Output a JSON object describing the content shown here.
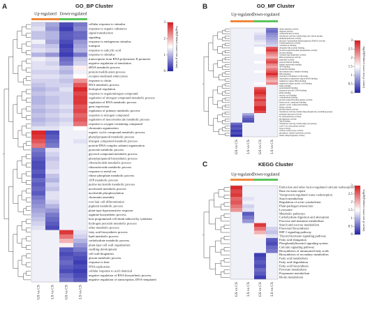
{
  "chart_data": [
    {
      "type": "heatmap",
      "panel": "A",
      "title": "GO_BP Cluster",
      "groups": [
        {
          "name": "Up-regulated",
          "color": "#f0883a"
        },
        {
          "name": "Down-regulated",
          "color": "#5dc45d"
        }
      ],
      "columns": [
        "GS vs CS",
        "LS vs CS",
        "GS vs CS",
        "LS vs CS"
      ],
      "colorbar_label": "-log10(Fisher's exact test p value)",
      "clim": [
        0,
        3
      ],
      "cticks": [
        0,
        1,
        2,
        3
      ],
      "rows": [
        "cellular response to stimulus",
        "response to organic substance",
        "signal transduction",
        "signaling",
        "response to endogenous stimulus",
        "transport",
        "response to salicylic acid",
        "response to stimulus",
        "transcription from RNA polymerase II promoter",
        "negative regulation of translation",
        "tRNA metabolic process",
        "protein modification process",
        "receptor-mediated endocytosis",
        "response to chitin",
        "RNA metabolic process",
        "biological regulation",
        "response to organonitrogen compound",
        "regulation of nitrogen compound metabolic process",
        "regulation of RNA metabolic process",
        "gene expression",
        "regulation of primary metabolic process",
        "response to nitrogen compound",
        "regulation of macromolecule metabolic process",
        "response to oxygen-containing compound",
        "chromatin organization",
        "organic cyclic compound metabolic process",
        "phenylpropanoid metabolic process",
        "nitrogen compound metabolic process",
        "protein-DNA complex subunit organization",
        "pyruvate metabolic process",
        "glycerol compound metabolic process",
        "phenylpropanoid biosynthetic process",
        "ribonucleotide metabolic process",
        "ribonucleoside metabolic process",
        "response to metal ion",
        "ribose phosphate metabolic process",
        "ATP metabolic process",
        "purine nucleotide metabolic process",
        "nucleoside metabolic process",
        "nucleotide phosphorylation",
        "chromatin assembly",
        "root hair cell differentiation",
        "pigment metabolic process",
        "plant-type hypersensitive response",
        "arginine biosynthetic process",
        "host programmed cell death induced by symbiont",
        "hydrogen peroxide metabolic process",
        "other metabolic process",
        "fatty acid biosynthetic process",
        "lipid metabolic process",
        "carbohydrate metabolic process",
        "plant-type cell wall organization",
        "seedling development",
        "cell wall biogenesis",
        "glucan metabolic process",
        "response to heat",
        "DNA replication",
        "cellular response to acid chemical",
        "negative regulation of RNA biosynthetic process",
        "negative regulation of transcription, DNA-templated"
      ],
      "values": [
        [
          1.2,
          0.9,
          0.3,
          0.6
        ],
        [
          1.3,
          0.8,
          0.2,
          0.7
        ],
        [
          1.1,
          1.0,
          0.4,
          0.5
        ],
        [
          1.1,
          1.0,
          0.4,
          0.5
        ],
        [
          1.4,
          0.9,
          0.3,
          0.8
        ],
        [
          1.2,
          1.1,
          0.2,
          0.9
        ],
        [
          1.3,
          1.2,
          0.3,
          1.0
        ],
        [
          1.0,
          0.8,
          0.2,
          0.6
        ],
        [
          1.4,
          1.3,
          0.5,
          1.1
        ],
        [
          1.3,
          1.2,
          0.6,
          1.2
        ],
        [
          1.3,
          1.3,
          1.1,
          1.6
        ],
        [
          1.2,
          1.2,
          1.0,
          1.4
        ],
        [
          1.3,
          1.3,
          1.2,
          1.5
        ],
        [
          1.2,
          1.2,
          1.1,
          2.2
        ],
        [
          1.1,
          1.2,
          1.2,
          2.6
        ],
        [
          1.0,
          1.1,
          1.3,
          2.9
        ],
        [
          1.1,
          1.2,
          1.2,
          2.7
        ],
        [
          1.0,
          1.1,
          1.2,
          2.8
        ],
        [
          1.0,
          1.1,
          1.2,
          2.8
        ],
        [
          1.1,
          1.2,
          1.3,
          2.6
        ],
        [
          1.0,
          1.1,
          1.2,
          2.7
        ],
        [
          1.1,
          1.2,
          1.3,
          2.5
        ],
        [
          1.0,
          1.1,
          1.2,
          2.6
        ],
        [
          1.1,
          1.2,
          1.3,
          2.4
        ],
        [
          1.3,
          1.3,
          1.4,
          1.5
        ],
        [
          2.9,
          0.3,
          1.4,
          1.4
        ],
        [
          2.8,
          0.4,
          1.4,
          1.4
        ],
        [
          2.6,
          0.5,
          1.4,
          1.3
        ],
        [
          2.4,
          0.6,
          1.4,
          1.4
        ],
        [
          0.6,
          1.3,
          1.4,
          1.4
        ],
        [
          0.5,
          1.2,
          1.4,
          1.4
        ],
        [
          0.4,
          1.1,
          1.4,
          1.4
        ],
        [
          0.3,
          1.2,
          1.4,
          1.4
        ],
        [
          0.3,
          1.2,
          1.4,
          1.4
        ],
        [
          0.4,
          1.3,
          1.4,
          1.4
        ],
        [
          0.3,
          1.1,
          1.4,
          1.4
        ],
        [
          0.5,
          1.0,
          1.4,
          1.4
        ],
        [
          0.4,
          1.2,
          1.4,
          1.4
        ],
        [
          0.5,
          1.1,
          1.4,
          1.4
        ],
        [
          0.4,
          1.3,
          1.4,
          1.4
        ],
        [
          0.6,
          1.3,
          1.4,
          1.4
        ],
        [
          0.7,
          1.2,
          1.4,
          1.4
        ],
        [
          0.8,
          1.0,
          1.4,
          1.4
        ],
        [
          0.9,
          0.8,
          1.4,
          1.4
        ],
        [
          1.0,
          0.6,
          1.4,
          1.4
        ],
        [
          1.1,
          0.5,
          1.4,
          1.4
        ],
        [
          1.2,
          0.4,
          1.4,
          1.4
        ],
        [
          1.3,
          0.3,
          1.4,
          1.4
        ],
        [
          1.4,
          1.4,
          2.8,
          1.3
        ],
        [
          1.4,
          1.4,
          2.4,
          1.2
        ],
        [
          1.4,
          1.4,
          2.0,
          1.0
        ],
        [
          1.4,
          1.4,
          1.6,
          0.8
        ],
        [
          1.4,
          1.4,
          0.4,
          0.6
        ],
        [
          1.4,
          1.4,
          0.3,
          0.4
        ],
        [
          1.4,
          1.4,
          0.4,
          0.3
        ],
        [
          1.4,
          1.4,
          0.5,
          0.2
        ],
        [
          1.4,
          1.4,
          0.4,
          0.3
        ],
        [
          1.4,
          1.4,
          0.3,
          0.2
        ],
        [
          1.4,
          1.4,
          0.5,
          0.3
        ],
        [
          1.4,
          1.4,
          0.6,
          0.4
        ]
      ]
    },
    {
      "type": "heatmap",
      "panel": "B",
      "title": "GO_MF Cluster",
      "groups": [
        {
          "name": "Up-regulated",
          "color": "#f0883a"
        },
        {
          "name": "Down-regulated",
          "color": "#5dc45d"
        }
      ],
      "columns": [
        "GS vs CS",
        "LS vs CS",
        "GS vs CS",
        "LS vs CS"
      ],
      "colorbar_label": "-log10(Fisher's exact test p value)",
      "clim": [
        0,
        3
      ],
      "cticks": [
        0,
        0.5,
        1,
        1.5,
        2,
        2.5,
        3
      ],
      "rows": [
        "alpha-amylase activity",
        "amylase activity",
        "oxidoreductase activity",
        "transferase activity, transferring one-carbon groups",
        "methyltransferase activity",
        "glycerol-3-phosphate dehydrogenase (NAD+) activity",
        "acetyltransferase activity",
        "calcium ion binding",
        "ubiquitin-like protein binding",
        "protein serine/threonine phosphatase activity",
        "protein binding",
        "cysteine-type peptidase activity",
        "RNA polymerase activity",
        "peptidase activity",
        "polysaccharide binding",
        "adenyl nucleotide binding",
        "ATP binding",
        "chromatin binding",
        "macromolecular complex binding",
        "RNA binding",
        "structural constituent of ribosome",
        "transcription regulatory region DNA binding",
        "regulatory region DNA binding",
        "regulatory region nucleic acid binding",
        "heme binding",
        "polyubiquitin binding",
        "sequence-specific DNA binding",
        "DNA binding",
        "nucleic acid binding",
        "carbohydrate binding",
        "protein serine/threonine kinase activity",
        "heterocyclic compound binding",
        "organic cyclic compound binding",
        "kinase activity",
        "protein kinase activity",
        "transferase activity, transferring phosphorus-containing groups",
        "polygalacturonase activity",
        "N-acyltransferase activity",
        "phosphatase activity",
        "lipid binding",
        "transferase activity, transferring acyl groups",
        "acyl-CoA carboxylase activity",
        "lyase activity",
        "carbon-carbon lyase activity",
        "phosphoric diester hydrolase activity",
        "amino dehydrogenase activity"
      ],
      "values": [
        [
          1.4,
          1.4,
          1.4,
          0.6
        ],
        [
          1.4,
          1.4,
          1.4,
          0.5
        ],
        [
          1.4,
          1.4,
          1.3,
          0.7
        ],
        [
          1.4,
          1.4,
          1.2,
          0.8
        ],
        [
          1.4,
          1.4,
          1.2,
          0.9
        ],
        [
          1.4,
          1.4,
          1.3,
          1.0
        ],
        [
          1.4,
          1.4,
          1.4,
          1.1
        ],
        [
          1.4,
          1.4,
          1.3,
          1.2
        ],
        [
          1.4,
          1.4,
          1.5,
          2.6
        ],
        [
          1.4,
          1.4,
          1.5,
          2.8
        ],
        [
          1.4,
          1.4,
          1.5,
          2.4
        ],
        [
          1.4,
          1.4,
          1.4,
          2.2
        ],
        [
          1.4,
          1.4,
          1.4,
          2.0
        ],
        [
          1.4,
          1.4,
          1.4,
          2.5
        ],
        [
          1.4,
          1.4,
          1.5,
          2.7
        ],
        [
          1.4,
          1.4,
          1.4,
          2.3
        ],
        [
          1.4,
          1.4,
          1.4,
          2.1
        ],
        [
          1.4,
          1.4,
          1.4,
          2.4
        ],
        [
          1.4,
          1.4,
          1.5,
          2.6
        ],
        [
          1.4,
          1.4,
          1.4,
          2.9
        ],
        [
          1.4,
          1.4,
          1.4,
          2.5
        ],
        [
          1.4,
          1.4,
          1.4,
          2.2
        ],
        [
          1.4,
          1.4,
          1.4,
          2.0
        ],
        [
          1.4,
          1.4,
          1.5,
          2.3
        ],
        [
          1.4,
          1.4,
          1.4,
          1.4
        ],
        [
          1.4,
          1.4,
          2.6,
          1.4
        ],
        [
          1.4,
          1.4,
          2.8,
          1.4
        ],
        [
          1.4,
          1.4,
          2.9,
          1.4
        ],
        [
          1.4,
          1.4,
          2.7,
          1.4
        ],
        [
          1.4,
          1.4,
          2.5,
          1.4
        ],
        [
          1.4,
          1.4,
          2.8,
          1.4
        ],
        [
          1.4,
          1.4,
          2.6,
          1.4
        ],
        [
          1.4,
          1.4,
          2.6,
          1.4
        ],
        [
          1.4,
          1.4,
          2.9,
          1.4
        ],
        [
          1.4,
          1.4,
          2.9,
          1.4
        ],
        [
          1.4,
          1.4,
          2.7,
          1.4
        ],
        [
          1.4,
          0.9,
          1.4,
          1.4
        ],
        [
          1.4,
          0.6,
          1.4,
          1.4
        ],
        [
          1.4,
          0.4,
          1.4,
          1.4
        ],
        [
          1.4,
          0.3,
          1.4,
          1.4
        ],
        [
          0.5,
          1.4,
          1.4,
          1.4
        ],
        [
          0.3,
          1.4,
          1.4,
          1.4
        ],
        [
          0.4,
          1.4,
          1.4,
          1.4
        ],
        [
          0.2,
          1.4,
          1.4,
          1.4
        ],
        [
          0.3,
          1.4,
          1.4,
          1.4
        ],
        [
          0.1,
          1.4,
          1.4,
          1.4
        ]
      ]
    },
    {
      "type": "heatmap",
      "panel": "C",
      "title": "KEGG Cluster",
      "groups": [
        {
          "name": "Up-regulated",
          "color": "#f0883a"
        },
        {
          "name": "Down-regulated",
          "color": "#5dc45d"
        }
      ],
      "columns": [
        "GS vs CS",
        "LS vs CS",
        "GS vs CS",
        "LS vs CS"
      ],
      "colorbar_label": "-log10(Fisher's exact test p value)",
      "clim": [
        0,
        3
      ],
      "cticks": [
        0,
        0.5,
        1,
        1.5,
        2,
        2.5,
        3
      ],
      "rows": [
        "Endocrine and other factor-regulated calcium reabsorption",
        "Base excision repair",
        "Vasopressin-regulated water reabsorption",
        "Starch metabolism",
        "Regulation of actin cytoskeleton",
        "Plant-pathogen interaction",
        "Lysosome",
        "Metabolic pathways",
        "Carbohydrate digestion and absorption",
        "Fructose and mannose metabolism",
        "Starch and sucrose metabolism",
        "Flavonoid biosynthesis",
        "HIF-1 signaling pathway",
        "Thyroid hormone signaling pathway",
        "Fatty acid elongation",
        "Phosphatidylinositol signaling system",
        "Calcium signaling pathway",
        "Biosynthesis of unsaturated fatty acids",
        "Biosynthesis of secondary metabolites",
        "Fatty acid metabolism",
        "Fatty acid degradation",
        "Fatty acid biosynthesis",
        "Pyruvate metabolism",
        "Propanoate metabolism",
        "Biotin metabolism"
      ],
      "values": [
        [
          2.9,
          1.4,
          1.4,
          1.4
        ],
        [
          2.7,
          1.4,
          1.4,
          1.4
        ],
        [
          2.8,
          1.4,
          1.4,
          1.4
        ],
        [
          2.5,
          1.3,
          1.4,
          1.4
        ],
        [
          2.6,
          1.4,
          1.4,
          1.4
        ],
        [
          2.4,
          1.2,
          1.4,
          1.4
        ],
        [
          2.2,
          1.3,
          1.4,
          1.4
        ],
        [
          1.4,
          0.4,
          1.4,
          1.4
        ],
        [
          1.4,
          0.6,
          1.4,
          1.4
        ],
        [
          1.4,
          0.8,
          1.4,
          1.4
        ],
        [
          1.4,
          1.4,
          2.8,
          1.4
        ],
        [
          1.4,
          1.4,
          2.4,
          1.2
        ],
        [
          1.4,
          1.4,
          2.0,
          1.1
        ],
        [
          1.4,
          1.4,
          1.6,
          1.3
        ],
        [
          1.4,
          1.4,
          1.4,
          0.4
        ],
        [
          1.4,
          1.4,
          1.4,
          0.3
        ],
        [
          1.4,
          1.4,
          1.4,
          0.5
        ],
        [
          1.4,
          1.4,
          1.4,
          0.6
        ],
        [
          1.4,
          1.4,
          0.2,
          1.4
        ],
        [
          1.4,
          1.4,
          0.3,
          1.4
        ],
        [
          1.4,
          1.4,
          0.4,
          1.4
        ],
        [
          1.4,
          1.4,
          0.3,
          1.4
        ],
        [
          1.4,
          1.4,
          0.5,
          1.4
        ],
        [
          1.4,
          1.4,
          0.4,
          1.4
        ],
        [
          1.4,
          1.4,
          0.2,
          1.4
        ]
      ]
    }
  ]
}
